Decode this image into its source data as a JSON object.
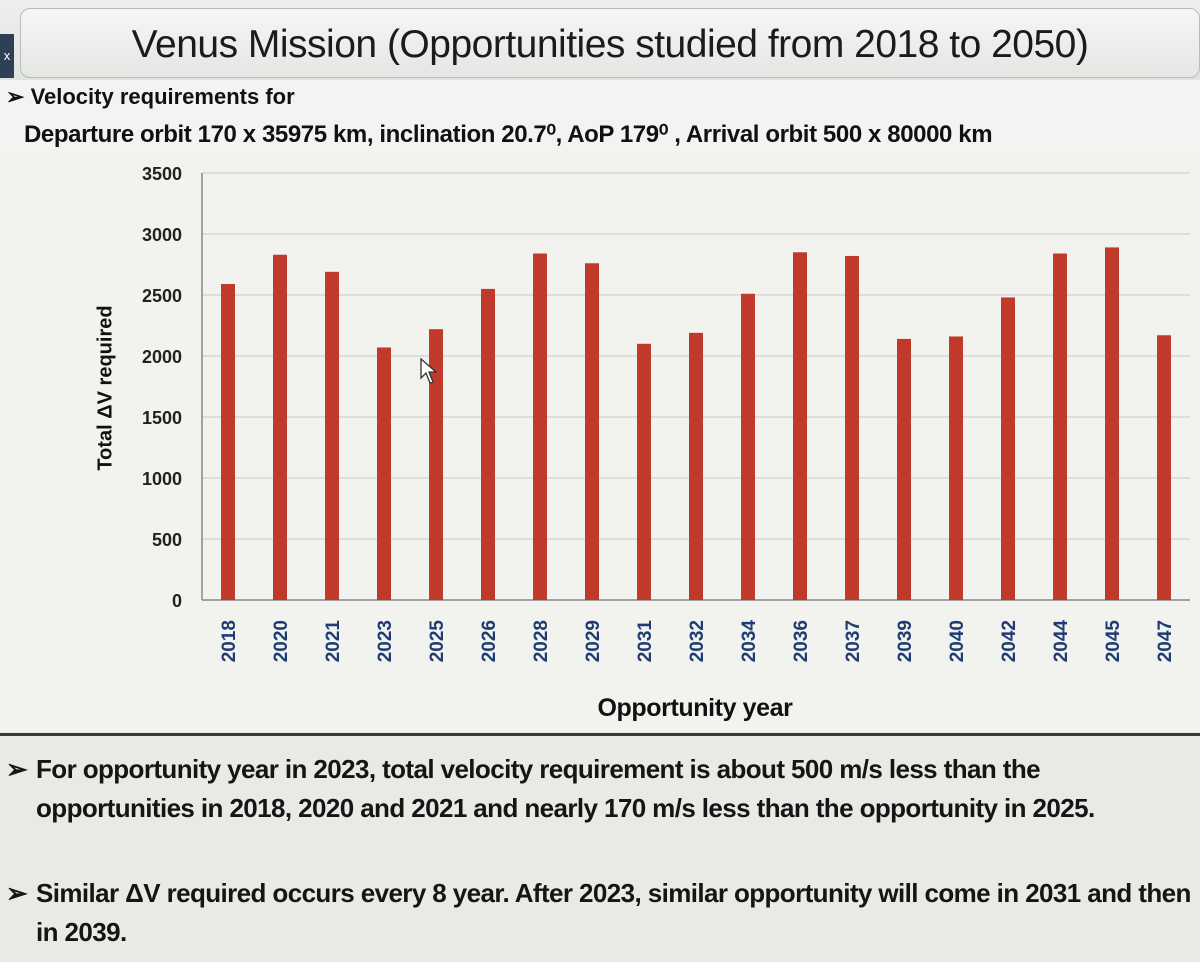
{
  "slide": {
    "title": "Venus Mission (Opportunities studied from 2018 to 2050)",
    "close_glyph": "x",
    "line1": "Velocity requirements for",
    "line2": "Departure orbit 170 x 35975 km, inclination 20.7⁰, AoP 179⁰ , Arrival orbit 500 x 80000 km",
    "bullet_glyph": "➢"
  },
  "notes": [
    "For opportunity year in 2023, total velocity requirement is about 500 m/s less than the opportunities in 2018, 2020 and 2021 and nearly 170 m/s less than the opportunity in 2025.",
    "Similar ΔV required occurs every 8 year. After 2023, similar opportunity will come in 2031 and then in 2039."
  ],
  "colors": {
    "bar": "#c0392b",
    "grid": "#c8c8c8",
    "tick_label_x": "#1f3b73"
  },
  "chart_data": {
    "type": "bar",
    "title": "",
    "xlabel": "Opportunity year",
    "ylabel": "Total ΔV required",
    "ylim": [
      0,
      3500
    ],
    "yticks": [
      0,
      500,
      1000,
      1500,
      2000,
      2500,
      3000,
      3500
    ],
    "grid": true,
    "categories": [
      "2018",
      "2020",
      "2021",
      "2023",
      "2025",
      "2026",
      "2028",
      "2029",
      "2031",
      "2032",
      "2034",
      "2036",
      "2037",
      "2039",
      "2040",
      "2042",
      "2044",
      "2045",
      "2047"
    ],
    "values": [
      2590,
      2830,
      2690,
      2070,
      2220,
      2550,
      2840,
      2760,
      2100,
      2190,
      2510,
      2850,
      2820,
      2140,
      2160,
      2480,
      2840,
      2890,
      2170
    ]
  }
}
